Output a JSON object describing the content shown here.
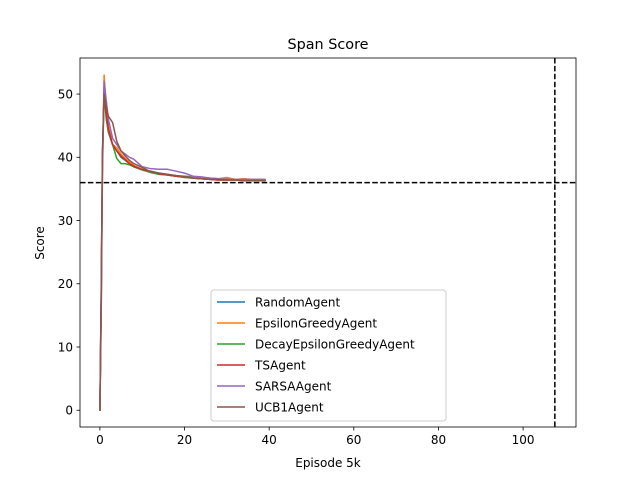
{
  "chart_data": {
    "type": "line",
    "title": "Span Score",
    "xlabel": "Episode 5k",
    "ylabel": "Score",
    "xlim": [
      -4.7,
      112.5
    ],
    "ylim": [
      -2.65,
      55.7
    ],
    "xticks": [
      0,
      20,
      40,
      60,
      80,
      100
    ],
    "yticks": [
      0,
      10,
      20,
      30,
      40,
      50
    ],
    "grid": false,
    "legend_position": "lower-center",
    "reference_lines": {
      "horizontal_y": 36,
      "vertical_x": 107.5
    },
    "series": [
      {
        "name": "RandomAgent",
        "color": "#1f77b4",
        "x": [
          0,
          0.3,
          0.6,
          1,
          1.5,
          2,
          3,
          4,
          5,
          6,
          7,
          8,
          10,
          12,
          14,
          16,
          18,
          20,
          22,
          24,
          26,
          28,
          30,
          32,
          34,
          36,
          39
        ],
        "y": [
          0,
          18,
          40,
          51,
          47,
          44,
          42,
          41,
          40,
          39.5,
          39,
          38.5,
          38,
          37.8,
          37.5,
          37.3,
          37.1,
          37,
          36.9,
          36.8,
          36.7,
          36.6,
          36.6,
          36.5,
          36.5,
          36.4,
          36.4
        ]
      },
      {
        "name": "EpsilonGreedyAgent",
        "color": "#ff7f0e",
        "x": [
          0,
          0.3,
          0.6,
          1,
          1.5,
          2,
          3,
          4,
          5,
          6,
          7,
          8,
          10,
          12,
          14,
          16,
          18,
          20,
          22,
          24,
          26,
          28,
          30,
          32,
          34,
          36,
          39
        ],
        "y": [
          0,
          15,
          38,
          53,
          48,
          45,
          42,
          41.5,
          40.5,
          39.8,
          39.2,
          38.7,
          38,
          37.6,
          37.4,
          37.2,
          37,
          36.9,
          36.8,
          36.7,
          36.6,
          36.6,
          36.8,
          36.5,
          36.6,
          36.5,
          36.5
        ]
      },
      {
        "name": "DecayEpsilonGreedyAgent",
        "color": "#2ca02c",
        "x": [
          0,
          0.3,
          0.6,
          1,
          1.5,
          2,
          3,
          4,
          5,
          6,
          7,
          8,
          10,
          12,
          14,
          16,
          18,
          20,
          22,
          24,
          26,
          28,
          30,
          32,
          34,
          36,
          39
        ],
        "y": [
          0,
          16,
          39,
          50,
          46,
          44,
          42,
          39.8,
          39,
          39,
          38.8,
          38.5,
          38,
          37.6,
          37.3,
          37.2,
          37,
          36.8,
          36.7,
          36.6,
          36.5,
          36.4,
          36.4,
          36.4,
          36.3,
          36.3,
          36.3
        ]
      },
      {
        "name": "TSAgent",
        "color": "#d62728",
        "x": [
          0,
          0.3,
          0.6,
          1,
          1.5,
          2,
          3,
          4,
          5,
          6,
          7,
          8,
          10,
          12,
          14,
          16,
          18,
          20,
          22,
          24,
          26,
          28,
          30,
          32,
          34,
          36,
          39
        ],
        "y": [
          0,
          17,
          40,
          51,
          47,
          44.5,
          42,
          41,
          40.2,
          39.6,
          39,
          38.6,
          38.1,
          37.8,
          37.4,
          37.2,
          37,
          36.9,
          36.7,
          36.6,
          36.5,
          36.4,
          36.4,
          36.4,
          36.3,
          36.3,
          36.3
        ]
      },
      {
        "name": "SARSAAgent",
        "color": "#9467bd",
        "x": [
          0,
          0.3,
          0.6,
          1,
          1.5,
          2,
          3,
          4,
          5,
          6,
          7,
          8,
          10,
          12,
          14,
          16,
          18,
          20,
          22,
          24,
          26,
          28,
          30,
          32,
          34,
          36,
          39
        ],
        "y": [
          0,
          14,
          37,
          52,
          49,
          46,
          43,
          42,
          41,
          40.5,
          40,
          39.7,
          38.5,
          38.2,
          38.1,
          38.1,
          37.8,
          37.5,
          37,
          36.9,
          36.7,
          36.6,
          36.5,
          36.5,
          36.5,
          36.5,
          36.5
        ]
      },
      {
        "name": "UCB1Agent",
        "color": "#8c564b",
        "x": [
          0,
          0.3,
          0.6,
          1,
          1.5,
          2,
          3,
          4,
          5,
          6,
          7,
          8,
          10,
          12,
          14,
          16,
          18,
          20,
          22,
          24,
          26,
          28,
          30,
          32,
          34,
          36,
          39
        ],
        "y": [
          0,
          18,
          41,
          50,
          48,
          46.5,
          45.5,
          42.5,
          41,
          40.2,
          39.5,
          39,
          38.4,
          37.7,
          37.5,
          37.3,
          37.1,
          36.9,
          36.7,
          36.6,
          36.5,
          36.5,
          36.4,
          36.4,
          36.3,
          36.3,
          36.3
        ]
      }
    ]
  }
}
